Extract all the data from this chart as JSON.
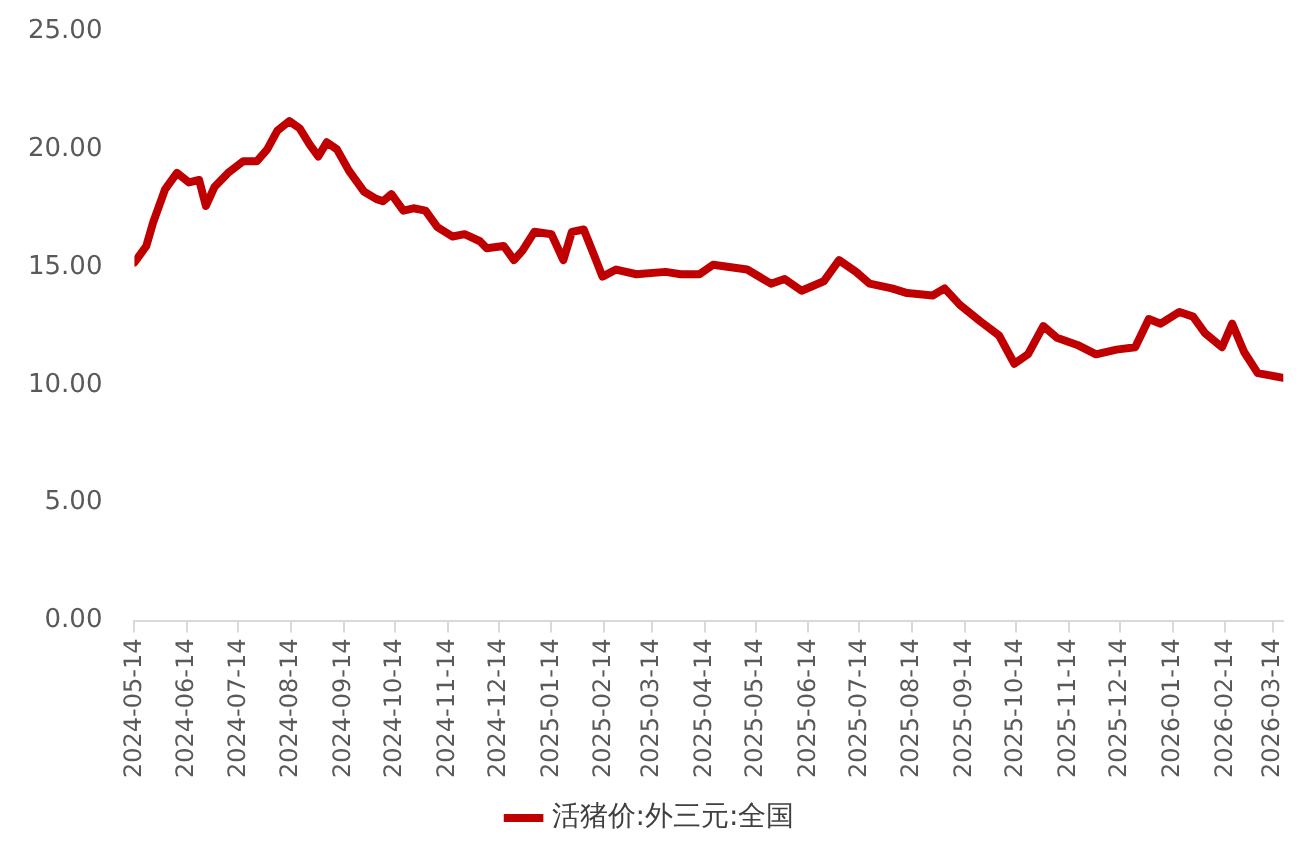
{
  "chart_data": {
    "type": "line",
    "legend": "bottom",
    "grid": false,
    "marker": "none",
    "line_style": "solid",
    "xlim": [
      "2024-05-14",
      "2026-03-20"
    ],
    "xticks": [
      "2024-05-14",
      "2024-06-14",
      "2024-07-14",
      "2024-08-14",
      "2024-09-14",
      "2024-10-14",
      "2024-11-14",
      "2024-12-14",
      "2025-01-14",
      "2025-02-14",
      "2025-03-14",
      "2025-04-14",
      "2025-05-14",
      "2025-06-14",
      "2025-07-14",
      "2025-08-14",
      "2025-09-14",
      "2025-10-14",
      "2025-11-14",
      "2025-12-14",
      "2026-01-14",
      "2026-02-14",
      "2026-03-14"
    ],
    "ylim": [
      0,
      25
    ],
    "yticks": [
      {
        "value": 0,
        "label": "0.00"
      },
      {
        "value": 5,
        "label": "5.00"
      },
      {
        "value": 10,
        "label": "10.00"
      },
      {
        "value": 15,
        "label": "15.00"
      },
      {
        "value": 20,
        "label": "20.00"
      },
      {
        "value": 25,
        "label": "25.00"
      }
    ],
    "x": [
      "2024-05-14",
      "2024-05-21",
      "2024-05-25",
      "2024-06-01",
      "2024-06-08",
      "2024-06-15",
      "2024-06-21",
      "2024-06-25",
      "2024-06-30",
      "2024-07-08",
      "2024-07-17",
      "2024-07-25",
      "2024-07-31",
      "2024-08-06",
      "2024-08-13",
      "2024-08-19",
      "2024-08-25",
      "2024-08-30",
      "2024-09-04",
      "2024-09-10",
      "2024-09-17",
      "2024-09-26",
      "2024-10-03",
      "2024-10-07",
      "2024-10-12",
      "2024-10-19",
      "2024-10-25",
      "2024-11-01",
      "2024-11-08",
      "2024-11-17",
      "2024-11-24",
      "2024-12-03",
      "2024-12-07",
      "2024-12-17",
      "2024-12-23",
      "2024-12-28",
      "2025-01-04",
      "2025-01-14",
      "2025-01-21",
      "2025-01-26",
      "2025-02-02",
      "2025-02-07",
      "2025-02-13",
      "2025-02-21",
      "2025-03-05",
      "2025-03-22",
      "2025-03-31",
      "2025-04-11",
      "2025-04-19",
      "2025-05-09",
      "2025-05-23",
      "2025-05-31",
      "2025-06-10",
      "2025-06-23",
      "2025-07-02",
      "2025-07-12",
      "2025-07-20",
      "2025-08-02",
      "2025-08-11",
      "2025-08-26",
      "2025-09-02",
      "2025-09-11",
      "2025-09-23",
      "2025-10-04",
      "2025-10-13",
      "2025-10-21",
      "2025-10-30",
      "2025-11-07",
      "2025-11-19",
      "2025-11-30",
      "2025-12-12",
      "2025-12-23",
      "2025-12-31",
      "2026-01-07",
      "2026-01-18",
      "2026-01-26",
      "2026-02-02",
      "2026-02-12",
      "2026-02-18",
      "2026-02-25",
      "2026-03-05",
      "2026-03-20"
    ],
    "series": [
      {
        "name": "活猪价:外三元:全国",
        "color": "#c00000",
        "values": [
          15.2,
          15.9,
          16.9,
          18.3,
          19.0,
          18.6,
          18.7,
          17.6,
          18.4,
          19.0,
          19.5,
          19.5,
          20.0,
          20.8,
          21.2,
          20.9,
          20.2,
          19.7,
          20.3,
          20.0,
          19.1,
          18.2,
          17.9,
          17.8,
          18.1,
          17.4,
          17.5,
          17.4,
          16.7,
          16.3,
          16.4,
          16.1,
          15.8,
          15.9,
          15.3,
          15.7,
          16.5,
          16.4,
          15.3,
          16.5,
          16.6,
          15.7,
          14.6,
          14.9,
          14.7,
          14.8,
          14.7,
          14.7,
          15.1,
          14.9,
          14.3,
          14.5,
          14.0,
          14.4,
          15.3,
          14.8,
          14.3,
          14.1,
          13.9,
          13.8,
          14.1,
          13.4,
          12.7,
          12.1,
          10.9,
          11.3,
          12.5,
          12.0,
          11.7,
          11.3,
          11.5,
          11.6,
          12.8,
          12.6,
          13.1,
          12.9,
          12.2,
          11.6,
          12.6,
          11.4,
          10.5,
          10.3
        ]
      }
    ]
  }
}
